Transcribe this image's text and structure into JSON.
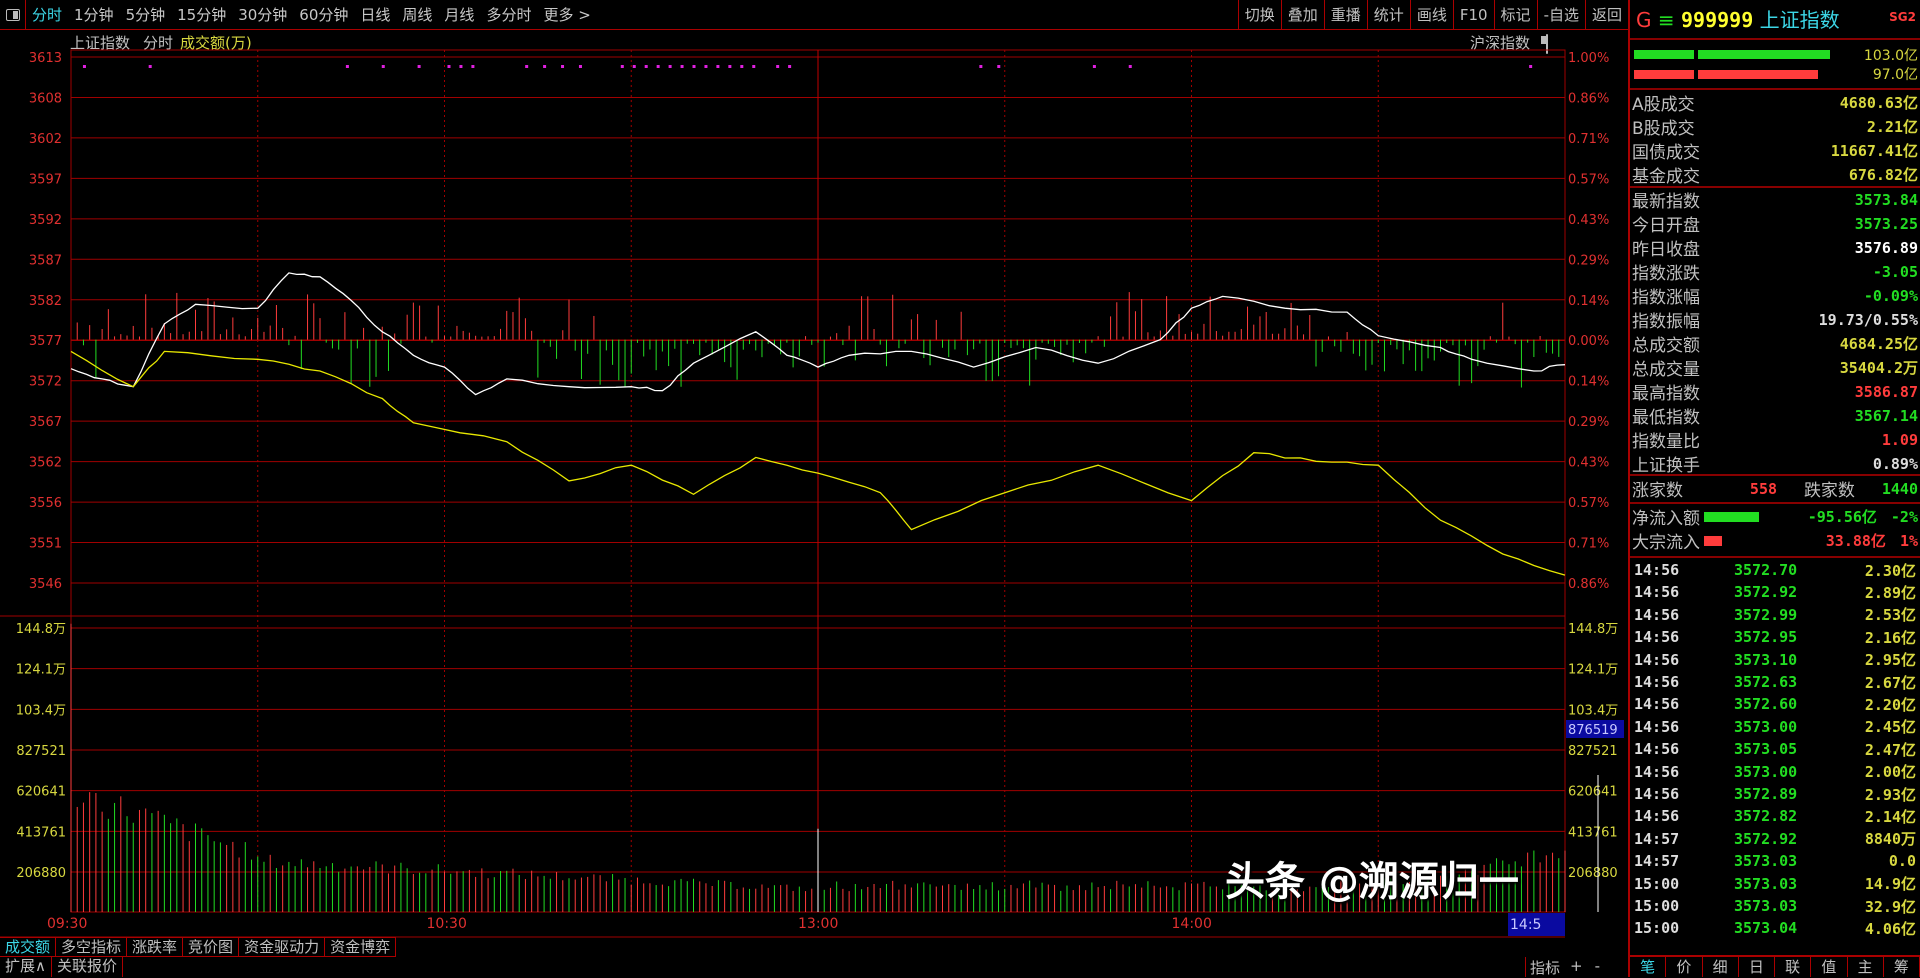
{
  "toolbar": {
    "periods": [
      "分时",
      "1分钟",
      "5分钟",
      "15分钟",
      "30分钟",
      "60分钟",
      "日线",
      "周线",
      "月线",
      "多分时",
      "更多 >"
    ],
    "active": 0,
    "tools": [
      "切换",
      "叠加",
      "重播",
      "统计",
      "画线",
      "F10",
      "标记",
      "-自选",
      "返回"
    ]
  },
  "subheader": {
    "name": "上证指数",
    "mode": "分时",
    "indicator": "成交额(万)",
    "right_label": "沪深指数"
  },
  "colors": {
    "up": "#ff3c3c",
    "down": "#22dd22",
    "grid": "#a00000",
    "index_line": "#ffffff",
    "avg_line": "#e8e800",
    "volume_label": "#d8d840"
  },
  "chart_data": {
    "type": "line",
    "x_ticks": [
      "09:30",
      "10:30",
      "13:00",
      "14:00",
      "14:5"
    ],
    "prev_close": 3577,
    "y_ticks": [
      "3613",
      "3608",
      "3602",
      "3597",
      "3592",
      "3587",
      "3582",
      "3577",
      "3572",
      "3567",
      "3562",
      "3556",
      "3551",
      "3546"
    ],
    "pct_ticks": [
      "1.00%",
      "0.86%",
      "0.71%",
      "0.57%",
      "0.43%",
      "0.29%",
      "0.14%",
      "0.00%",
      "0.14%",
      "0.29%",
      "0.43%",
      "0.57%",
      "0.71%",
      "0.86%"
    ],
    "ylim": [
      3546,
      3613
    ],
    "series": [
      {
        "points": [
          [
            "09:30",
            3573.3
          ],
          [
            "09:35",
            3572
          ],
          [
            "09:40",
            3571
          ],
          [
            "09:45",
            3579
          ],
          [
            "09:50",
            3581.5
          ],
          [
            "10:00",
            3581
          ],
          [
            "10:05",
            3585.5
          ],
          [
            "10:10",
            3585
          ],
          [
            "10:15",
            3582
          ],
          [
            "10:20",
            3578
          ],
          [
            "10:25",
            3575
          ],
          [
            "10:30",
            3573.5
          ],
          [
            "10:35",
            3570
          ],
          [
            "10:40",
            3572
          ],
          [
            "10:50",
            3571
          ],
          [
            "11:00",
            3571
          ],
          [
            "11:05",
            3570.5
          ],
          [
            "11:10",
            3574
          ],
          [
            "11:20",
            3578
          ],
          [
            "11:25",
            3575
          ],
          [
            "11:30",
            3573.5
          ],
          [
            "13:05",
            3575
          ],
          [
            "13:15",
            3575.5
          ],
          [
            "13:25",
            3573.5
          ],
          [
            "13:35",
            3576
          ],
          [
            "13:45",
            3574
          ],
          [
            "13:55",
            3577
          ],
          [
            "14:00",
            3581
          ],
          [
            "14:05",
            3582.5
          ],
          [
            "14:15",
            3581
          ],
          [
            "14:25",
            3580.5
          ],
          [
            "14:30",
            3577.5
          ],
          [
            "14:40",
            3576
          ],
          [
            "14:45",
            3574.5
          ],
          [
            "14:55",
            3573
          ],
          [
            "15:00",
            3573.8
          ]
        ]
      },
      {
        "points": [
          [
            "09:30",
            3575.5
          ],
          [
            "09:40",
            3571
          ],
          [
            "09:45",
            3575.5
          ],
          [
            "10:00",
            3574.5
          ],
          [
            "10:10",
            3573
          ],
          [
            "10:20",
            3569.5
          ],
          [
            "10:25",
            3566.4
          ],
          [
            "10:40",
            3564
          ],
          [
            "10:50",
            3559
          ],
          [
            "11:00",
            3561
          ],
          [
            "11:10",
            3557.3
          ],
          [
            "11:20",
            3562
          ],
          [
            "11:30",
            3560
          ],
          [
            "13:10",
            3557.5
          ],
          [
            "13:15",
            3552.8
          ],
          [
            "13:30",
            3557.5
          ],
          [
            "13:45",
            3561
          ],
          [
            "14:00",
            3556.5
          ],
          [
            "14:10",
            3562.6
          ],
          [
            "14:20",
            3561.5
          ],
          [
            "14:30",
            3561
          ],
          [
            "14:40",
            3554
          ],
          [
            "14:50",
            3549.7
          ],
          [
            "15:00",
            3547
          ]
        ]
      }
    ],
    "volume": {
      "y_ticks": [
        "144.8万",
        "124.1万",
        "103.4万",
        "827521",
        "620641",
        "413761",
        "206880"
      ],
      "ylim": [
        0,
        1448000
      ],
      "cursor_value": "876519"
    }
  },
  "bottom_tabs": [
    "成交额",
    "多空指标",
    "涨跌率",
    "竞价图",
    "资金驱动力",
    "资金博弈"
  ],
  "bottom_tabs2": [
    "扩展∧",
    "关联报价"
  ],
  "corner": {
    "label": "指标",
    "plus": "+",
    "minus": "-"
  },
  "panel": {
    "prefix": "G",
    "code": "999999",
    "name": "上证指数",
    "tag": "SG2",
    "bars": [
      {
        "value": "103.0亿"
      },
      {
        "value": "97.0亿"
      }
    ],
    "turnover": [
      {
        "label": "A股成交",
        "value": "4680.63亿",
        "color": "#d8d840"
      },
      {
        "label": "B股成交",
        "value": "2.21亿",
        "color": "#d8d840"
      },
      {
        "label": "国债成交",
        "value": "11667.41亿",
        "color": "#d8d840"
      },
      {
        "label": "基金成交",
        "value": "676.82亿",
        "color": "#d8d840"
      }
    ],
    "stats": [
      {
        "label": "最新指数",
        "value": "3573.84",
        "color": "#22dd22"
      },
      {
        "label": "今日开盘",
        "value": "3573.25",
        "color": "#22dd22"
      },
      {
        "label": "昨日收盘",
        "value": "3576.89",
        "color": "#ffffff"
      },
      {
        "label": "指数涨跌",
        "value": "-3.05",
        "color": "#22dd22"
      },
      {
        "label": "指数涨幅",
        "value": "-0.09%",
        "color": "#22dd22"
      },
      {
        "label": "指数振幅",
        "value": "19.73/0.55%",
        "color": "#dddddd"
      },
      {
        "label": "总成交额",
        "value": "4684.25亿",
        "color": "#d8d840"
      },
      {
        "label": "总成交量",
        "value": "35404.2万",
        "color": "#d8d840"
      },
      {
        "label": "最高指数",
        "value": "3586.87",
        "color": "#ff3c3c"
      },
      {
        "label": "最低指数",
        "value": "3567.14",
        "color": "#22dd22"
      },
      {
        "label": "指数量比",
        "value": "1.09",
        "color": "#ff3c3c"
      },
      {
        "label": "上证换手",
        "value": "0.89%",
        "color": "#dddddd"
      }
    ],
    "breadth": {
      "up_label": "涨家数",
      "up": "558",
      "down_label": "跌家数",
      "down": "1440"
    },
    "flows": [
      {
        "label": "净流入额",
        "value": "-95.56亿",
        "pct": "-2%",
        "color": "#22dd22"
      },
      {
        "label": "大宗流入",
        "value": "33.88亿",
        "pct": "1%",
        "color": "#ff3c3c"
      }
    ],
    "ticks": [
      [
        "14:56",
        "3572.70",
        "2.30亿"
      ],
      [
        "14:56",
        "3572.92",
        "2.89亿"
      ],
      [
        "14:56",
        "3572.99",
        "2.53亿"
      ],
      [
        "14:56",
        "3572.95",
        "2.16亿"
      ],
      [
        "14:56",
        "3573.10",
        "2.95亿"
      ],
      [
        "14:56",
        "3572.63",
        "2.67亿"
      ],
      [
        "14:56",
        "3572.60",
        "2.20亿"
      ],
      [
        "14:56",
        "3573.00",
        "2.45亿"
      ],
      [
        "14:56",
        "3573.05",
        "2.47亿"
      ],
      [
        "14:56",
        "3573.00",
        "2.00亿"
      ],
      [
        "14:56",
        "3572.89",
        "2.93亿"
      ],
      [
        "14:56",
        "3572.82",
        "2.14亿"
      ],
      [
        "14:57",
        "3572.92",
        "8840万"
      ],
      [
        "14:57",
        "3573.03",
        "0.0"
      ],
      [
        "15:00",
        "3573.03",
        "14.9亿"
      ],
      [
        "15:00",
        "3573.03",
        "32.9亿"
      ],
      [
        "15:00",
        "3573.04",
        "4.06亿"
      ]
    ],
    "tabs": [
      "笔",
      "价",
      "细",
      "日",
      "联",
      "值",
      "主",
      "筹"
    ]
  },
  "watermark": "头条 @溯源归一"
}
